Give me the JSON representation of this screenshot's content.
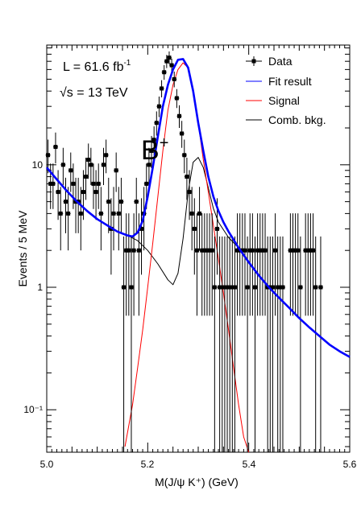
{
  "chart_data": {
    "type": "scatter",
    "title": "",
    "xlabel": "M(J/ψ K⁺) (GeV)",
    "ylabel": "Events / 5 MeV",
    "xlim": [
      5.0,
      5.6
    ],
    "ylim": [
      0.045,
      95
    ],
    "yscale": "log",
    "x_ticks": [
      "5.0",
      "5.2",
      "5.4",
      "5.6"
    ],
    "y_ticks": [
      "10⁻¹",
      "1",
      "10"
    ],
    "y_tick_values": [
      0.1,
      1,
      10
    ],
    "grid": false,
    "legend_position": "top-right",
    "colors": {
      "data": "#000000",
      "fit": "#0000ff",
      "signal": "#ff0000",
      "background": "#000000"
    },
    "annotations": {
      "lumi_prefix": "L = 61.6 fb",
      "lumi_exp": "-1",
      "energy_sqrt": "√",
      "energy_rest": "s = 13 TeV",
      "peak_label": "B",
      "peak_sup": "+"
    },
    "legend": [
      "Data",
      "Fit result",
      "Signal",
      "Comb. bkg."
    ],
    "series": [
      {
        "name": "Data",
        "kind": "points",
        "x": [
          5.0025,
          5.0075,
          5.0125,
          5.0175,
          5.0225,
          5.0275,
          5.0325,
          5.0375,
          5.0425,
          5.0475,
          5.0525,
          5.0575,
          5.0625,
          5.0675,
          5.0725,
          5.0775,
          5.0825,
          5.0875,
          5.0925,
          5.0975,
          5.1025,
          5.1075,
          5.1125,
          5.1175,
          5.1225,
          5.1275,
          5.1325,
          5.1375,
          5.1425,
          5.1475,
          5.1525,
          5.1575,
          5.1625,
          5.1675,
          5.1725,
          5.1775,
          5.1825,
          5.1875,
          5.1925,
          5.1975,
          5.2025,
          5.2075,
          5.2125,
          5.2175,
          5.2225,
          5.2275,
          5.2325,
          5.2375,
          5.2425,
          5.2475,
          5.2525,
          5.2575,
          5.2625,
          5.2675,
          5.2725,
          5.2775,
          5.2825,
          5.2875,
          5.2925,
          5.2975,
          5.3025,
          5.3075,
          5.3125,
          5.3175,
          5.3225,
          5.3275,
          5.3325,
          5.3375,
          5.3425,
          5.3475,
          5.3525,
          5.3575,
          5.3625,
          5.3675,
          5.3725,
          5.3775,
          5.3825,
          5.3875,
          5.3925,
          5.3975,
          5.4025,
          5.4075,
          5.4125,
          5.4175,
          5.4225,
          5.4275,
          5.4325,
          5.4375,
          5.4425,
          5.4475,
          5.4525,
          5.4575,
          5.4625,
          5.4675,
          5.4725,
          5.4775,
          5.4825,
          5.4875,
          5.4925,
          5.4975,
          5.5025,
          5.5075,
          5.5125,
          5.5175,
          5.5225,
          5.5275,
          5.5325,
          5.5375,
          5.5425,
          5.5475,
          5.5525,
          5.5575,
          5.5625,
          5.5675,
          5.5725,
          5.5775,
          5.5825,
          5.5875,
          5.5925,
          5.5975
        ],
        "y": [
          12,
          7,
          7,
          14,
          6,
          4,
          10,
          5,
          4,
          9,
          7,
          5,
          5,
          4,
          6,
          8,
          11,
          10,
          7,
          6,
          7,
          4,
          10,
          12,
          5,
          3,
          4,
          9,
          4,
          5,
          1,
          2,
          2,
          1,
          2,
          5,
          2,
          3,
          4,
          7,
          10,
          13,
          16,
          22,
          30,
          42,
          57,
          70,
          75,
          65,
          50,
          35,
          25,
          18,
          12,
          8,
          6,
          4,
          3,
          2,
          4,
          2,
          2,
          2,
          2,
          2,
          1,
          3,
          1,
          1,
          1,
          1,
          1,
          1,
          1,
          2,
          2,
          2,
          2,
          1,
          2,
          2,
          1,
          2,
          2,
          2,
          2,
          1,
          1,
          1,
          2,
          1,
          1,
          1,
          0,
          0,
          2,
          2,
          2,
          2,
          1,
          0,
          2,
          2,
          2,
          2,
          1,
          0,
          1,
          0,
          0,
          0,
          0,
          0,
          0,
          0,
          0,
          0,
          0,
          0
        ]
      },
      {
        "name": "Fit result",
        "kind": "curve",
        "x": [
          5.0,
          5.02,
          5.04,
          5.06,
          5.08,
          5.1,
          5.12,
          5.14,
          5.16,
          5.17,
          5.18,
          5.19,
          5.2,
          5.21,
          5.22,
          5.23,
          5.24,
          5.25,
          5.26,
          5.27,
          5.28,
          5.29,
          5.3,
          5.31,
          5.32,
          5.33,
          5.34,
          5.35,
          5.36,
          5.37,
          5.38,
          5.4,
          5.42,
          5.44,
          5.46,
          5.48,
          5.5,
          5.52,
          5.54,
          5.56,
          5.58,
          5.6
        ],
        "y": [
          9.5,
          7.6,
          6.1,
          5.0,
          4.2,
          3.6,
          3.2,
          2.85,
          2.65,
          2.6,
          2.8,
          3.5,
          5.5,
          9.5,
          17,
          30,
          45,
          60,
          72,
          73,
          62,
          40,
          22,
          13,
          8,
          5.5,
          4.2,
          3.4,
          2.85,
          2.45,
          2.1,
          1.6,
          1.25,
          1.0,
          0.82,
          0.68,
          0.56,
          0.47,
          0.4,
          0.34,
          0.3,
          0.27
        ]
      },
      {
        "name": "Signal",
        "kind": "curve",
        "x": [
          5.155,
          5.17,
          5.18,
          5.19,
          5.2,
          5.21,
          5.22,
          5.23,
          5.24,
          5.25,
          5.26,
          5.27,
          5.28,
          5.29,
          5.3,
          5.31,
          5.32,
          5.33,
          5.34,
          5.35,
          5.36,
          5.37,
          5.38,
          5.39,
          5.4
        ],
        "y": [
          0.05,
          0.11,
          0.22,
          0.45,
          1.0,
          2.3,
          5.5,
          13,
          28,
          45,
          60,
          68,
          62,
          42,
          22,
          11,
          6,
          3.2,
          1.7,
          0.9,
          0.45,
          0.22,
          0.11,
          0.06,
          0.045
        ]
      },
      {
        "name": "Comb. bkg.",
        "kind": "curve",
        "x": [
          5.0,
          5.02,
          5.04,
          5.06,
          5.08,
          5.1,
          5.12,
          5.14,
          5.16,
          5.18,
          5.2,
          5.22,
          5.24,
          5.25,
          5.26,
          5.27,
          5.28,
          5.29,
          5.3,
          5.31,
          5.32,
          5.33,
          5.34,
          5.36,
          5.38,
          5.4,
          5.42,
          5.44,
          5.46,
          5.48,
          5.5,
          5.52,
          5.54,
          5.56,
          5.58,
          5.6
        ],
        "y": [
          9.5,
          7.6,
          6.1,
          5.0,
          4.2,
          3.6,
          3.2,
          2.85,
          2.65,
          2.4,
          2.0,
          1.55,
          1.15,
          1.05,
          1.3,
          2.5,
          6.0,
          10.5,
          11.5,
          9.5,
          6.5,
          4.4,
          3.4,
          2.55,
          2.1,
          1.6,
          1.25,
          1.0,
          0.82,
          0.68,
          0.56,
          0.47,
          0.4,
          0.34,
          0.3,
          0.27
        ]
      }
    ]
  }
}
